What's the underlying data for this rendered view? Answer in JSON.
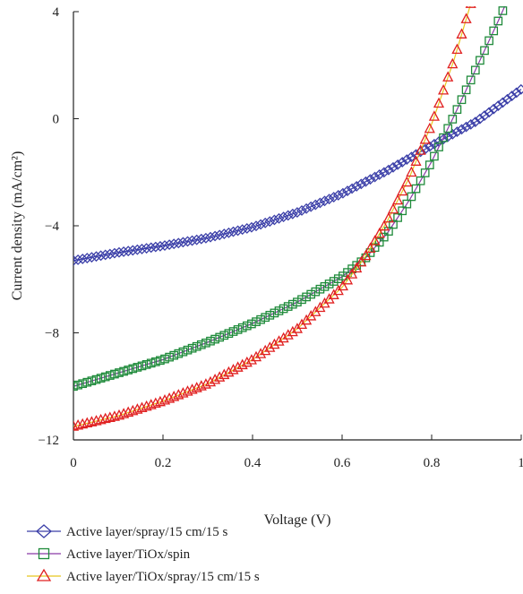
{
  "chart_data": {
    "type": "scatter",
    "title": "",
    "xlabel": "Voltage (V)",
    "ylabel": "Current density (mA/cm²)",
    "xlim": [
      0,
      1
    ],
    "ylim": [
      -12,
      4
    ],
    "x_ticks": [
      0,
      0.2,
      0.4,
      0.6,
      0.8,
      1
    ],
    "x_tick_labels": [
      "0",
      "0.2",
      "0.4",
      "0.6",
      "0.8",
      "1"
    ],
    "y_ticks": [
      4,
      0,
      -4,
      -8,
      -12
    ],
    "y_tick_labels": [
      "4",
      "0",
      "−4",
      "−8",
      "−12"
    ],
    "grid": false,
    "legend_position": "bottom",
    "series": [
      {
        "name": "Active layer/spray/15 cm/15 s",
        "color": "#3b3fa8",
        "line_color": "#3b3fa8",
        "marker": "diamond",
        "x": [
          0,
          0.1,
          0.2,
          0.3,
          0.4,
          0.5,
          0.6,
          0.7,
          0.8,
          0.9,
          1.0
        ],
        "y": [
          -5.3,
          -5.0,
          -4.75,
          -4.45,
          -4.05,
          -3.5,
          -2.8,
          -1.95,
          -1.0,
          -0.1,
          1.1
        ]
      },
      {
        "name": "Active layer/TiOx/spin",
        "color": "#1e8a3a",
        "line_color": "#8a3aa8",
        "marker": "square",
        "x": [
          0,
          0.1,
          0.2,
          0.3,
          0.4,
          0.5,
          0.6,
          0.65,
          0.7,
          0.75,
          0.8,
          0.85,
          0.9,
          0.95,
          1.0
        ],
        "y": [
          -10.0,
          -9.5,
          -9.0,
          -8.35,
          -7.65,
          -6.85,
          -5.9,
          -5.25,
          -4.3,
          -3.05,
          -1.6,
          0.1,
          1.9,
          3.7,
          5.6
        ]
      },
      {
        "name": "Active layer/TiOx/spray/15 cm/15 s",
        "color": "#e02020",
        "line_color": "#e8c81e",
        "marker": "triangle",
        "x": [
          0,
          0.1,
          0.2,
          0.3,
          0.4,
          0.5,
          0.6,
          0.65,
          0.7,
          0.75,
          0.8,
          0.85,
          0.9
        ],
        "y": [
          -11.5,
          -11.1,
          -10.55,
          -9.9,
          -9.0,
          -7.85,
          -6.3,
          -5.2,
          -3.85,
          -2.2,
          -0.2,
          2.2,
          5.0
        ]
      }
    ]
  }
}
